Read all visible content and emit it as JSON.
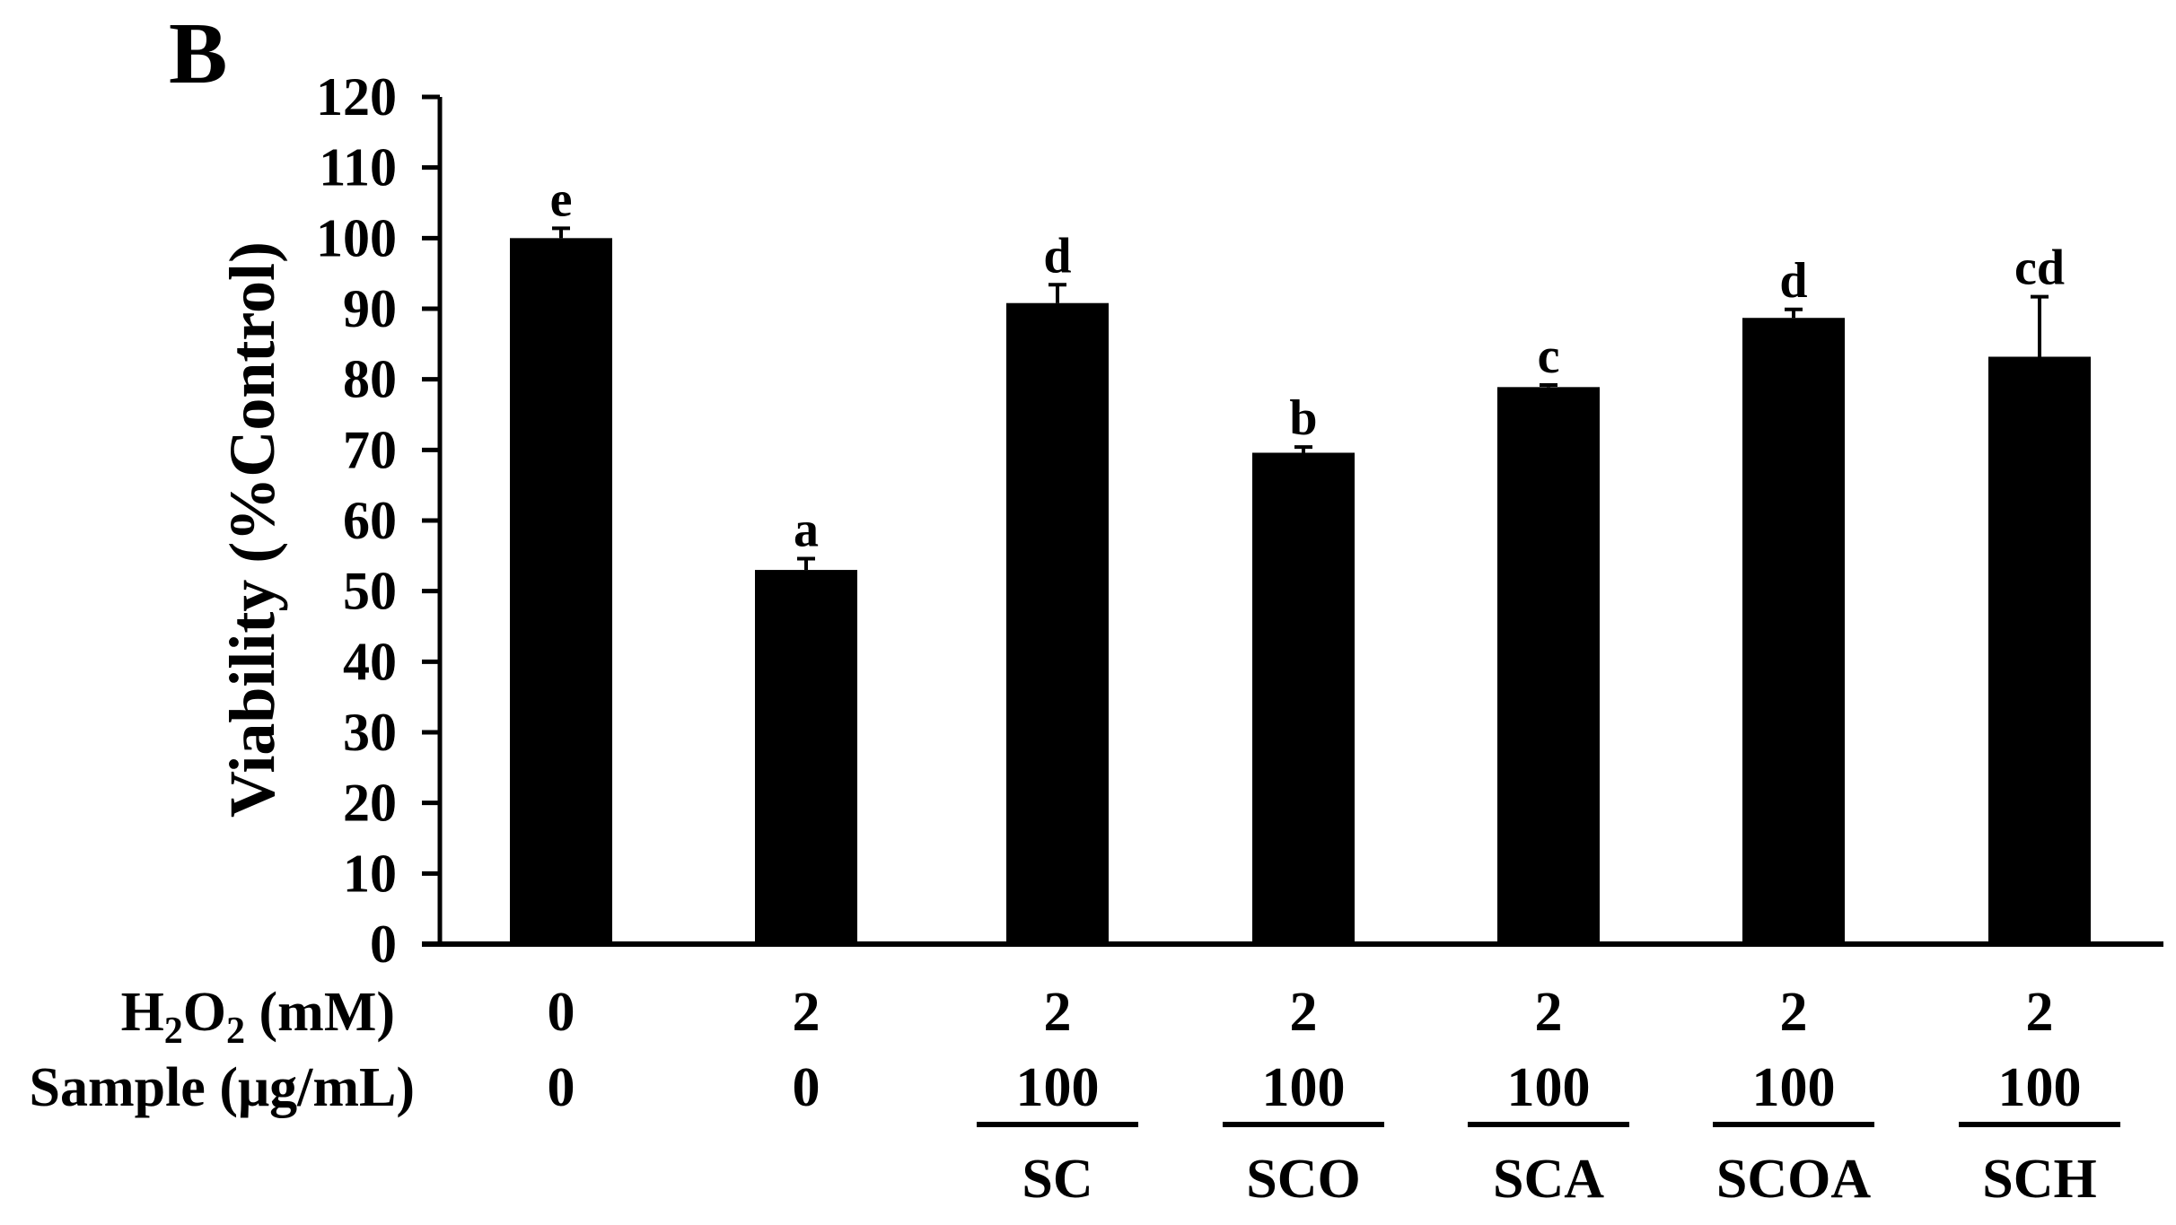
{
  "panel_label": "B",
  "chart_data": {
    "type": "bar",
    "title": "",
    "xlabel": "",
    "ylabel": "Viability (%Control)",
    "ylim": [
      0,
      120
    ],
    "ytick_step": 10,
    "yticks": [
      "0",
      "10",
      "20",
      "30",
      "40",
      "50",
      "60",
      "70",
      "80",
      "90",
      "100",
      "110",
      "120"
    ],
    "grid": false,
    "legend": "none",
    "bar_color": "#000000",
    "categories": [
      "0/0",
      "2/0",
      "SC",
      "SCO",
      "SCA",
      "SCOA",
      "SCH"
    ],
    "values": [
      100,
      53,
      90.8,
      69.6,
      78.9,
      88.7,
      83.2
    ],
    "errors": [
      1.4,
      1.6,
      2.6,
      0.8,
      0.3,
      1.2,
      8.5
    ],
    "significance_letters": [
      "e",
      "a",
      "d",
      "b",
      "c",
      "d",
      "cd"
    ],
    "table_rows": [
      {
        "label_main": "H",
        "label_sub1": "2",
        "label_mid": "O",
        "label_sub2": "2",
        "label_rest": " (mM)",
        "values": [
          "0",
          "2",
          "2",
          "2",
          "2",
          "2",
          "2"
        ]
      },
      {
        "label": "Sample (μg/mL)",
        "values": [
          "0",
          "0",
          "100",
          "100",
          "100",
          "100",
          "100"
        ]
      }
    ],
    "sample_names": [
      "",
      "",
      "SC",
      "SCO",
      "SCA",
      "SCOA",
      "SCH"
    ]
  }
}
